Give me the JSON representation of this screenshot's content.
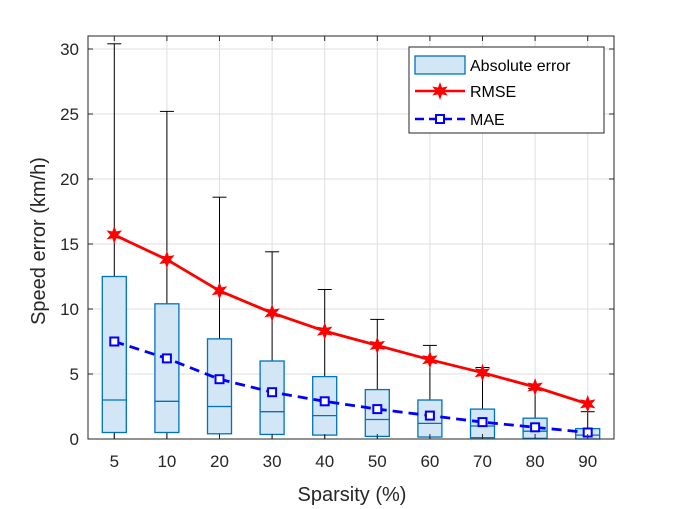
{
  "chart_data": {
    "type": "box",
    "title": "",
    "xlabel": "Sparsity (%)",
    "ylabel": "Speed error (km/h)",
    "ylim": [
      0,
      31
    ],
    "yticks": [
      0,
      5,
      10,
      15,
      20,
      25,
      30
    ],
    "categories": [
      "5",
      "10",
      "20",
      "30",
      "40",
      "50",
      "60",
      "70",
      "80",
      "90"
    ],
    "grid": true,
    "legend_position": "top-right",
    "boxes": {
      "name": "Absolute error",
      "color": "#0072BD",
      "fill": "#D2E6F5",
      "whisker_low": [
        0,
        0,
        0,
        0,
        0,
        0,
        0,
        0,
        0,
        0
      ],
      "q1": [
        0.5,
        0.5,
        0.4,
        0.35,
        0.3,
        0.2,
        0.15,
        0.1,
        0.05,
        0.0
      ],
      "median": [
        3.0,
        2.9,
        2.5,
        2.1,
        1.8,
        1.5,
        1.2,
        1.0,
        0.6,
        0.3
      ],
      "q3": [
        12.5,
        10.4,
        7.7,
        6.0,
        4.8,
        3.8,
        3.0,
        2.3,
        1.6,
        0.8
      ],
      "whisker_high": [
        30.4,
        25.2,
        18.6,
        14.4,
        11.5,
        9.2,
        7.2,
        5.5,
        3.9,
        2.1
      ]
    },
    "series": [
      {
        "name": "RMSE",
        "color": "#FF0000",
        "marker": "star",
        "line": "solid",
        "values": [
          15.7,
          13.8,
          11.4,
          9.7,
          8.3,
          7.2,
          6.1,
          5.1,
          4.0,
          2.7
        ]
      },
      {
        "name": "MAE",
        "color": "#0000FF",
        "marker": "square",
        "line": "dashed",
        "values": [
          7.5,
          6.2,
          4.6,
          3.6,
          2.9,
          2.3,
          1.8,
          1.3,
          0.9,
          0.5
        ]
      }
    ],
    "legend": [
      "Absolute error",
      "RMSE",
      "MAE"
    ]
  }
}
